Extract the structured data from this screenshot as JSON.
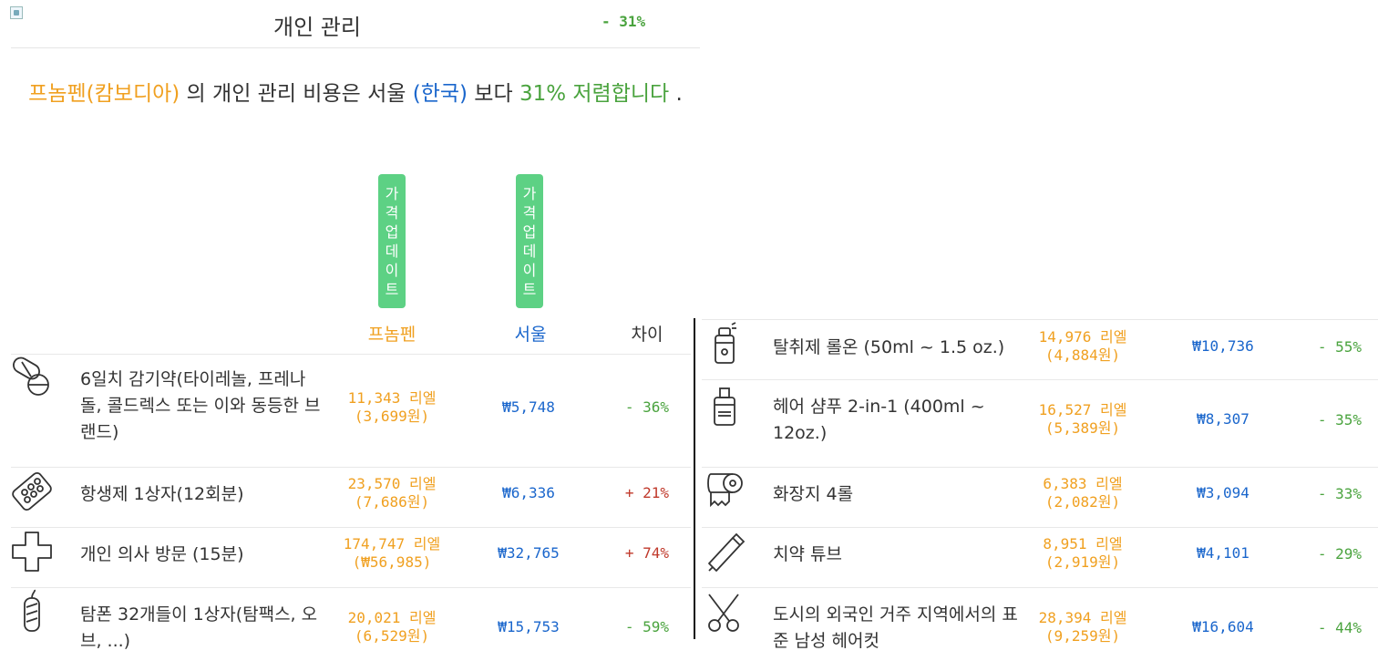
{
  "header": {
    "title": "개인 관리",
    "diff_pct": "- 31%"
  },
  "summary": {
    "city1": "프놈펜(캄보디아)",
    "text1": " 의 개인 관리 비용은 서울 ",
    "city2": "(한국)",
    "text2": " 보다 ",
    "result": "31% 저렴합니다",
    "period": " ."
  },
  "update_button": {
    "chars": [
      "가",
      "격",
      "업",
      "데",
      "이",
      "트"
    ]
  },
  "columns": {
    "city1": "프놈펜",
    "city2": "서울",
    "diff": "차이"
  },
  "left_items": [
    {
      "icon": "pills-icon",
      "name": "6일치 감기약(타이레놀, 프레나돌, 콜드렉스 또는 이와 동등한 브랜드)",
      "local": "11,343 리엘",
      "local_krw": "(3,699원)",
      "seoul": "₩5,748",
      "diff": "- 36%",
      "diff_color": "#4aa33e"
    },
    {
      "icon": "pill-pack-icon",
      "name": "항생제 1상자(12회분)",
      "local": "23,570 리엘",
      "local_krw": "(7,686원)",
      "seoul": "₩6,336",
      "diff": "+ 21%",
      "diff_color": "#c0392b"
    },
    {
      "icon": "medical-cross-icon",
      "name": "개인 의사 방문 (15분)",
      "local": "174,747 리엘",
      "local_krw": "(₩56,985)",
      "seoul": "₩32,765",
      "diff": "+ 74%",
      "diff_color": "#c0392b"
    },
    {
      "icon": "tampon-icon",
      "name": "탐폰 32개들이 1상자(탐팩스, 오브, ...)",
      "local": "20,021 리엘",
      "local_krw": "(6,529원)",
      "seoul": "₩15,753",
      "diff": "- 59%",
      "diff_color": "#4aa33e"
    }
  ],
  "right_items": [
    {
      "icon": "deodorant-icon",
      "name": "탈취제 롤온 (50ml ~ 1.5 oz.)",
      "local": "14,976 리엘",
      "local_krw": "(4,884원)",
      "seoul": "₩10,736",
      "diff": "- 55%",
      "diff_color": "#4aa33e"
    },
    {
      "icon": "shampoo-icon",
      "name": "헤어 샴푸 2-in-1 (400ml ~ 12oz.)",
      "local": "16,527 리엘",
      "local_krw": "(5,389원)",
      "seoul": "₩8,307",
      "diff": "- 35%",
      "diff_color": "#4aa33e"
    },
    {
      "icon": "toilet-paper-icon",
      "name": "화장지 4롤",
      "local": "6,383 리엘",
      "local_krw": "(2,082원)",
      "seoul": "₩3,094",
      "diff": "- 33%",
      "diff_color": "#4aa33e"
    },
    {
      "icon": "toothpaste-icon",
      "name": "치약 튜브",
      "local": "8,951 리엘",
      "local_krw": "(2,919원)",
      "seoul": "₩4,101",
      "diff": "- 29%",
      "diff_color": "#4aa33e"
    },
    {
      "icon": "scissors-icon",
      "name": "도시의 외국인 거주 지역에서의 표준 남성 헤어컷",
      "local": "28,394 리엘",
      "local_krw": "(9,259원)",
      "seoul": "₩16,604",
      "diff": "- 44%",
      "diff_color": "#4aa33e"
    }
  ],
  "colors": {
    "orange": "#f0a020",
    "blue": "#1a66cc",
    "green": "#4aa33e",
    "red": "#c0392b",
    "button": "#5dd184"
  }
}
